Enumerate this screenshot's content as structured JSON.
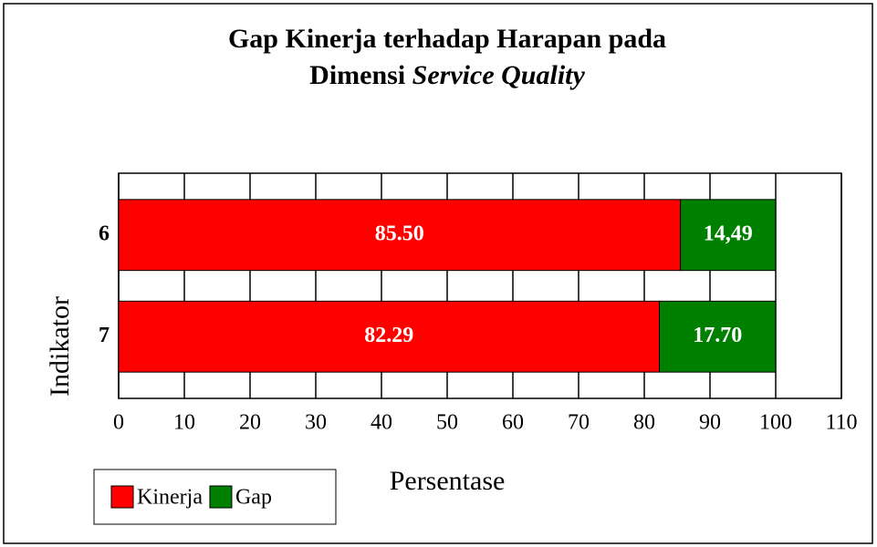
{
  "chart_data": {
    "type": "stacked_bar_horizontal",
    "title": [
      "Gap Kinerja terhadap Harapan pada",
      "Dimensi",
      "Service Quality"
    ],
    "x_label": "Persentase",
    "y_label": "Indikator",
    "categories": [
      "6",
      "7"
    ],
    "series": [
      {
        "name": "Kinerja",
        "color": "#ff0000",
        "values": [
          85.5,
          82.29
        ],
        "value_labels": [
          "85.50",
          "82.29"
        ]
      },
      {
        "name": "Gap",
        "color": "#008000",
        "values": [
          14.49,
          17.7
        ],
        "value_labels": [
          "14,49",
          "17.70"
        ]
      }
    ],
    "xlim": [
      0,
      110
    ],
    "xticks": [
      0,
      10,
      20,
      30,
      40,
      50,
      60,
      70,
      80,
      90,
      100,
      110
    ],
    "grid": true,
    "legend": "bottom-left"
  }
}
